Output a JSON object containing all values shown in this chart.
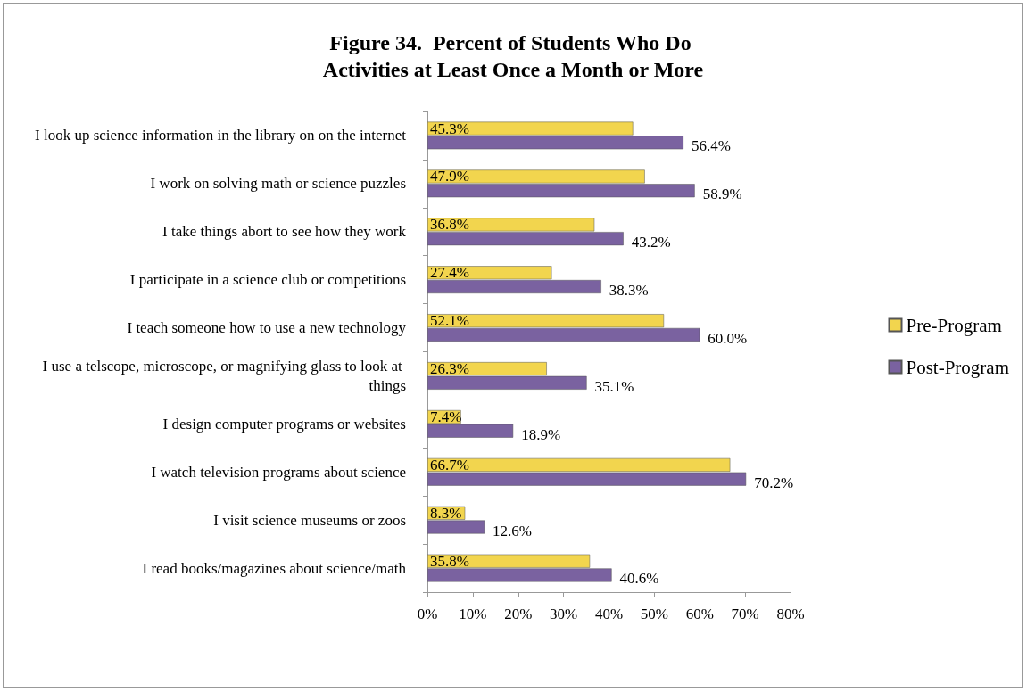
{
  "chart_data": {
    "type": "bar",
    "orientation": "horizontal",
    "title": "Figure 34.  Percent of Students Who Do Activities at Least Once a Month or More",
    "categories": [
      "I look up science information in the library on on the internet",
      "I work on solving math or science puzzles",
      "I take things abort to see how they work",
      "I participate in a science club or competitions",
      "I teach someone how to use a new technology",
      "I use a telscope, microscope, or magnifying glass to look at things",
      "I design computer programs or websites",
      "I watch television programs about science",
      "I visit science museums or zoos",
      "I read books/magazines about science/math"
    ],
    "series": [
      {
        "name": "Pre-Program",
        "color": "#f2d54e",
        "values": [
          45.3,
          47.9,
          36.8,
          27.4,
          52.1,
          26.3,
          7.4,
          66.7,
          8.3,
          35.8
        ],
        "value_labels": [
          "45.3%",
          "47.9%",
          "36.8%",
          "27.4%",
          "52.1%",
          "26.3%",
          "7.4%",
          "66.7%",
          "8.3%",
          "35.8%"
        ]
      },
      {
        "name": "Post-Program",
        "color": "#7a62a0",
        "values": [
          56.4,
          58.9,
          43.2,
          38.3,
          60.0,
          35.1,
          18.9,
          70.2,
          12.6,
          40.6
        ],
        "value_labels": [
          "56.4%",
          "58.9%",
          "43.2%",
          "38.3%",
          "60.0%",
          "35.1%",
          "18.9%",
          "70.2%",
          "12.6%",
          "40.6%"
        ]
      }
    ],
    "xlim": [
      0,
      80
    ],
    "xticks": [
      {
        "value": 0,
        "label": "0%"
      },
      {
        "value": 10,
        "label": "10%"
      },
      {
        "value": 20,
        "label": "20%"
      },
      {
        "value": 30,
        "label": "30%"
      },
      {
        "value": 40,
        "label": "40%"
      },
      {
        "value": 50,
        "label": "50%"
      },
      {
        "value": 60,
        "label": "60%"
      },
      {
        "value": 70,
        "label": "70%"
      },
      {
        "value": 80,
        "label": "80%"
      }
    ],
    "grid": false,
    "legend": "right"
  }
}
